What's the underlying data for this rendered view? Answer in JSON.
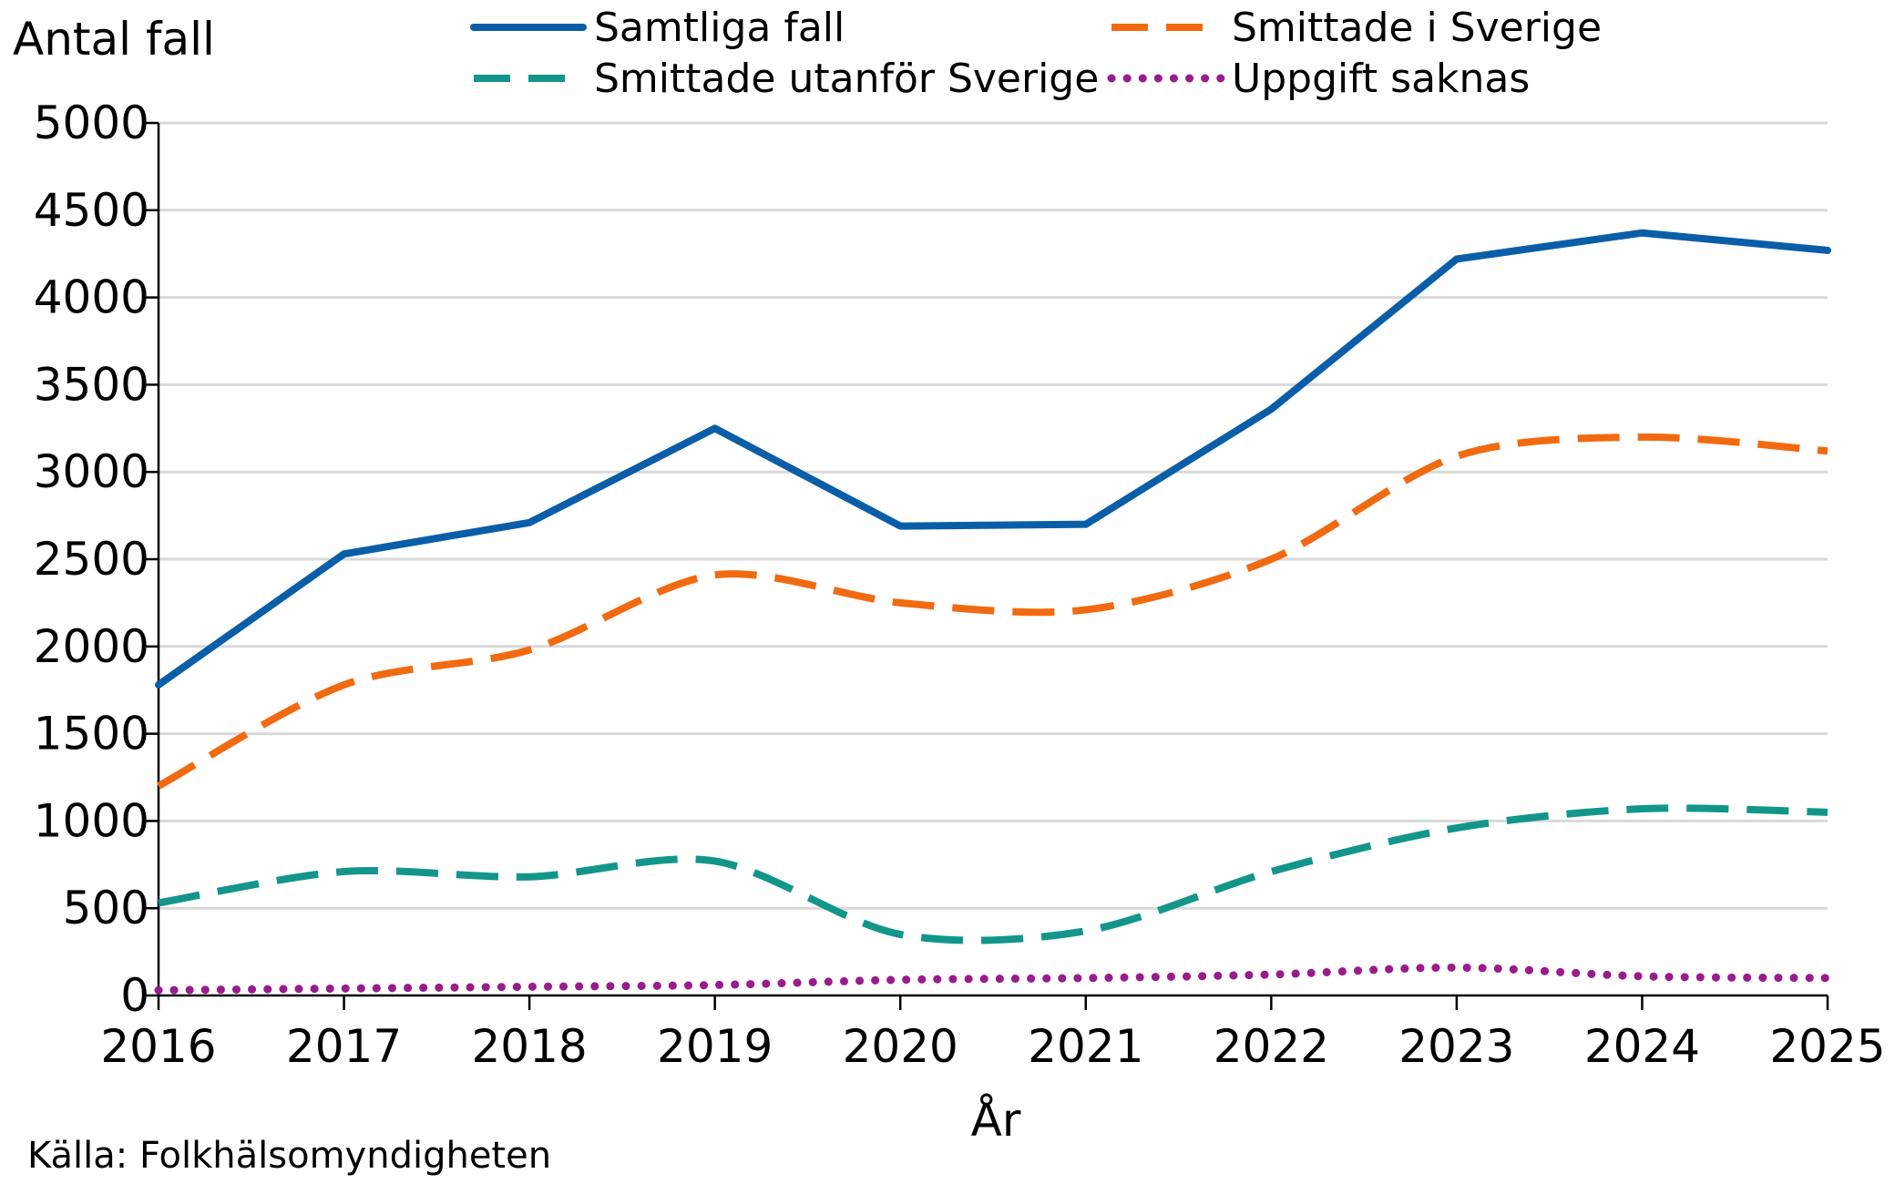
{
  "chart_data": {
    "type": "line",
    "ylabel": "Antal fall",
    "xlabel": "År",
    "source": "Källa: Folkhälsomyndigheten",
    "x": [
      "2016",
      "2017",
      "2018",
      "2019",
      "2020",
      "2021",
      "2022",
      "2023",
      "2024",
      "2025"
    ],
    "ylim": [
      0,
      5000
    ],
    "yticks": [
      "0",
      "500",
      "1000",
      "1500",
      "2000",
      "2500",
      "3000",
      "3500",
      "4000",
      "4500",
      "5000"
    ],
    "grid": "horizontal",
    "legend_position": "top",
    "series": [
      {
        "name": "Samtliga fall",
        "color": "#0a5ea8",
        "style": "solid",
        "values": [
          1780,
          2530,
          2710,
          3250,
          2690,
          2700,
          3360,
          4220,
          4370,
          4270
        ]
      },
      {
        "name": "Smittade i Sverige",
        "color": "#f26a0f",
        "style": "dashed",
        "values": [
          1200,
          1780,
          1980,
          2410,
          2250,
          2210,
          2500,
          3090,
          3200,
          3120
        ]
      },
      {
        "name": "Smittade utanför Sverige",
        "color": "#12968a",
        "style": "dashed",
        "values": [
          530,
          710,
          680,
          770,
          350,
          370,
          710,
          960,
          1070,
          1050
        ]
      },
      {
        "name": "Uppgift saknas",
        "color": "#9a1b8c",
        "style": "dotted",
        "values": [
          30,
          40,
          50,
          60,
          90,
          100,
          120,
          160,
          110,
          100
        ]
      }
    ]
  }
}
